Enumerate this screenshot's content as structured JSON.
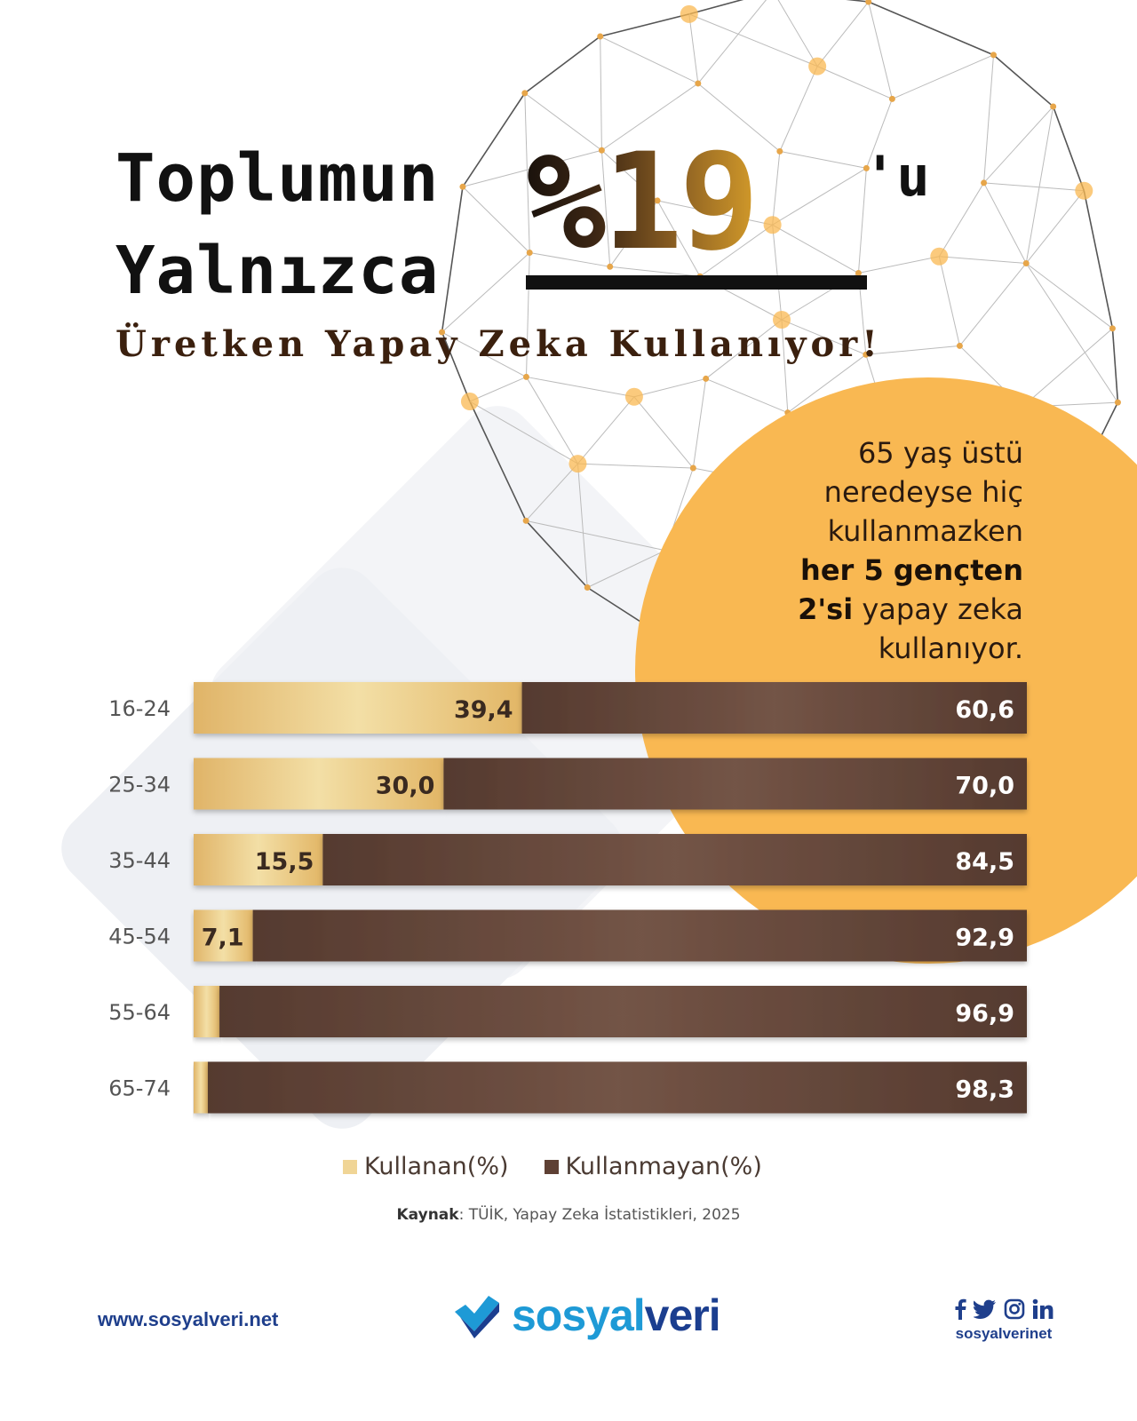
{
  "headline": {
    "line1": "Toplumun",
    "line2": "Yalnızca",
    "big_number": "%19",
    "suffix": "'u",
    "subtitle": "Üretken Yapay Zeka Kullanıyor!"
  },
  "note": {
    "line1": "65 yaş üstü",
    "line2": "neredeyse hiç",
    "line3": "kullanmazken",
    "line4_bold": "her 5 gençten",
    "line5_bold": "2'si",
    "line5_rest": " yapay zeka",
    "line6": "kullanıyor."
  },
  "colors": {
    "using": "#e8c57d",
    "not_using": "#5e4034",
    "accent_circle": "#f9b852",
    "brand_blue": "#1f3f8c",
    "brand_light_blue": "#1e9ad6"
  },
  "chart_data": {
    "type": "bar",
    "orientation": "horizontal",
    "stacked": true,
    "categories": [
      "16-24",
      "25-34",
      "35-44",
      "45-54",
      "55-64",
      "65-74"
    ],
    "series": [
      {
        "name": "Kullanan(%)",
        "values": [
          39.4,
          30.0,
          15.5,
          7.1,
          3.1,
          1.7
        ],
        "labels": [
          "39,4",
          "30,0",
          "15,5",
          "7,1",
          "",
          ""
        ]
      },
      {
        "name": "Kullanmayan(%)",
        "values": [
          60.6,
          70.0,
          84.5,
          92.9,
          96.9,
          98.3
        ],
        "labels": [
          "60,6",
          "70,0",
          "84,5",
          "92,9",
          "96,9",
          "98,3"
        ]
      }
    ],
    "xlim": [
      0,
      100
    ],
    "legend": "bottom-center",
    "grid": false
  },
  "source": {
    "label": "Kaynak",
    "text": ": TÜİK, Yapay Zeka İstatistikleri, 2025"
  },
  "footer": {
    "website": "www.sosyalveri.net",
    "logo_part1": "sosyal",
    "logo_part2": "veri",
    "handle": "sosyalverinet",
    "social_icons": [
      "facebook-icon",
      "twitter-icon",
      "instagram-icon",
      "linkedin-icon"
    ]
  }
}
